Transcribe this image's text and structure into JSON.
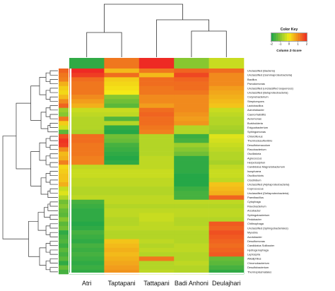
{
  "chart_data": {
    "type": "heatmap",
    "title": "",
    "xlabel": "",
    "ylabel": "",
    "columns": [
      "Atri",
      "Taptapani",
      "Tattapani",
      "Badi Anhoni",
      "Deulajhari"
    ],
    "column_header_z": [
      -1.8,
      1.2,
      2.0,
      -1.0,
      -0.4
    ],
    "rows": [
      "Unclassified (Bacteria)",
      "Unclassified (Gammaproteobacteria)",
      "Bacillus",
      "Pseudomonas",
      "Unclassified (unclassified sequences)",
      "Unclassified (Betaproteobacteria)",
      "Corynebacterium",
      "Streptomyces",
      "Lactobacillus",
      "Acinetobacter",
      "Caenorhabditis",
      "Aeromonas",
      "Burkholderia",
      "Exiguobacterium",
      "Sphingomonas",
      "Chloroflexus",
      "Thermodesulfovibrio",
      "Desulfotomaculum",
      "Flavobacterium",
      "Oscillatoria",
      "Agrococcus",
      "Herpetosiphon",
      "Candidatus Magnetobacterium",
      "Isosphaera",
      "Oscillochloris",
      "Clostridium",
      "Unclassified (Alphaproteobacteria)",
      "Coprococcus",
      "Unclassified (Deltaproteobacteria)",
      "Paenibacillus",
      "Cytophaga",
      "Flavobacterium",
      "Arcobacter",
      "Sphingobacterium",
      "Pedobacter",
      "Chitinophaga",
      "Unclassified (Sphingobacteriales)",
      "Myxobia",
      "Azotobacter",
      "Desulfomonas",
      "Candidatus Solibacter",
      "Hydrogenophaga",
      "Leptospira",
      "Alkaliphilus",
      "Chromobacterium",
      "Desulfobacterium",
      "Thermoplasmatales"
    ],
    "values": [
      [
        2.0,
        0.5,
        1.2,
        1.4,
        1.3
      ],
      [
        1.8,
        1.3,
        0.5,
        1.7,
        1.0
      ],
      [
        1.3,
        0.3,
        1.3,
        1.4,
        1.0
      ],
      [
        1.2,
        0.2,
        1.3,
        1.3,
        1.0
      ],
      [
        1.2,
        0.1,
        1.2,
        1.3,
        0.8
      ],
      [
        1.2,
        0.0,
        1.2,
        1.2,
        0.7
      ],
      [
        1.0,
        -1.0,
        1.0,
        1.0,
        0.6
      ],
      [
        0.8,
        -1.2,
        1.0,
        1.0,
        0.5
      ],
      [
        0.6,
        -1.4,
        0.8,
        1.0,
        0.4
      ],
      [
        -0.4,
        -0.4,
        1.3,
        1.0,
        -0.4
      ],
      [
        -0.5,
        -0.5,
        1.4,
        0.9,
        -0.5
      ],
      [
        -0.6,
        -1.5,
        1.3,
        0.8,
        -0.6
      ],
      [
        -0.6,
        -0.6,
        1.3,
        0.9,
        -0.6
      ],
      [
        -0.6,
        -1.8,
        1.2,
        -0.6,
        -0.7
      ],
      [
        -0.7,
        -1.9,
        1.1,
        -0.6,
        -0.8
      ],
      [
        1.3,
        -1.2,
        -0.6,
        -1.7,
        -0.2
      ],
      [
        1.3,
        -1.3,
        -0.6,
        -1.6,
        -0.3
      ],
      [
        1.2,
        -1.6,
        -0.6,
        -0.8,
        -0.4
      ],
      [
        1.2,
        -1.7,
        -0.6,
        -1.0,
        -0.5
      ],
      [
        1.2,
        -1.8,
        -0.6,
        -1.2,
        -0.6
      ],
      [
        1.1,
        -1.9,
        -0.5,
        -1.8,
        -0.6
      ],
      [
        1.1,
        -1.8,
        -0.5,
        -1.8,
        -0.7
      ],
      [
        -0.5,
        -0.5,
        -0.5,
        -1.8,
        -0.5
      ],
      [
        -0.4,
        -0.4,
        -0.4,
        -1.8,
        -0.4
      ],
      [
        -0.4,
        -0.4,
        -0.4,
        -1.9,
        -0.4
      ],
      [
        -0.5,
        -0.5,
        -0.5,
        -1.9,
        -0.5
      ],
      [
        -0.5,
        -0.5,
        -0.5,
        -1.9,
        0.4
      ],
      [
        -0.6,
        -0.6,
        -0.6,
        -1.7,
        0.5
      ],
      [
        -0.6,
        -0.6,
        -0.6,
        -1.6,
        0.6
      ],
      [
        -0.5,
        -0.5,
        -0.5,
        -1.6,
        1.4
      ],
      [
        -1.6,
        -0.5,
        -0.5,
        -0.5,
        -0.5
      ],
      [
        -1.7,
        -0.6,
        -0.6,
        -0.6,
        -0.6
      ],
      [
        -1.8,
        -0.5,
        -0.5,
        -0.5,
        -0.5
      ],
      [
        -1.8,
        -0.5,
        -0.4,
        -0.5,
        -0.5
      ],
      [
        -1.8,
        -0.6,
        -0.4,
        -0.6,
        -0.6
      ],
      [
        -1.9,
        -0.6,
        -0.5,
        -0.6,
        1.5
      ],
      [
        -1.8,
        -0.5,
        -0.5,
        -0.5,
        1.4
      ],
      [
        -1.6,
        -0.6,
        -0.6,
        -0.6,
        1.6
      ],
      [
        -1.7,
        -0.6,
        -0.6,
        -0.6,
        1.5
      ],
      [
        -1.8,
        0.4,
        -0.5,
        -0.6,
        1.4
      ],
      [
        -1.6,
        0.5,
        -0.6,
        -0.5,
        1.3
      ],
      [
        -1.7,
        0.6,
        -0.5,
        -0.5,
        1.4
      ],
      [
        -1.6,
        0.5,
        -0.6,
        -0.6,
        1.5
      ],
      [
        -1.7,
        0.6,
        1.2,
        -0.6,
        -1.3
      ],
      [
        -1.8,
        0.7,
        -0.6,
        -0.5,
        -1.4
      ],
      [
        -1.7,
        0.8,
        -0.6,
        -0.6,
        -1.6
      ],
      [
        -1.8,
        0.9,
        -0.5,
        -0.6,
        -1.8
      ]
    ],
    "row_sidebar_z": [
      1.4,
      1.2,
      1.1,
      0.6,
      0.3,
      0.2,
      0.5,
      1.0,
      1.4,
      -0.8,
      -1.0,
      1.2,
      0.3,
      -0.3,
      -1.4,
      1.6,
      1.9,
      1.8,
      1.0,
      0.5,
      0.6,
      1.1,
      0.2,
      0.3,
      0.4,
      0.4,
      0.6,
      -0.4,
      -0.2,
      -0.6,
      -1.2,
      -1.0,
      -1.3,
      -1.4,
      -1.0,
      -1.4,
      -1.2,
      -1.8,
      -1.6,
      -1.5,
      -1.7,
      -1.4,
      -1.6,
      -1.4,
      -1.8,
      -1.3,
      -1.6
    ],
    "color_key": {
      "title": "Color Key",
      "xlabel": "Column Z-Score",
      "range": [
        -2,
        2
      ],
      "ticks": [
        "-2",
        "-1",
        "0",
        "1",
        "2"
      ]
    },
    "colors": {
      "low": "#1aa34a",
      "mid": "#f4ea16",
      "high": "#ee2a24"
    },
    "legend_position": "top-right",
    "grid": false
  }
}
